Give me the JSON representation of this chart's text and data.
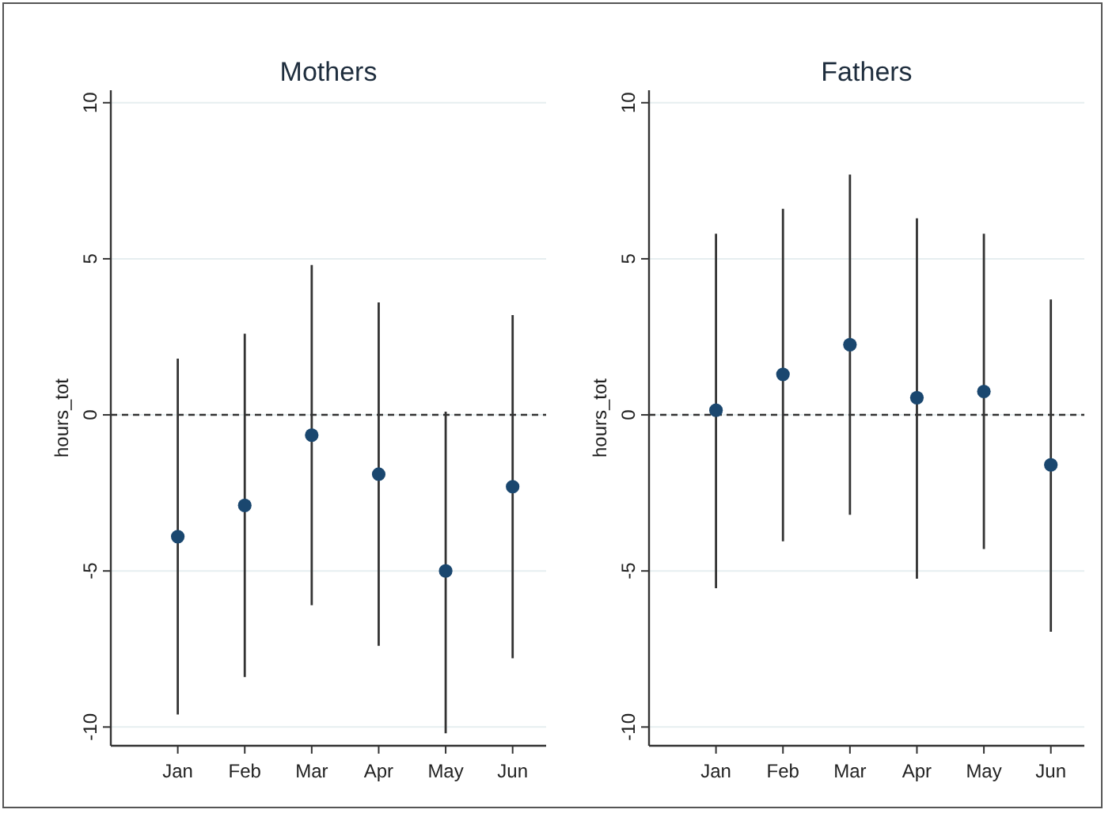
{
  "chart_data": [
    {
      "type": "scatter",
      "title": "Mothers",
      "ylabel": "hours_tot",
      "categories": [
        "Jan",
        "Feb",
        "Mar",
        "Apr",
        "May",
        "Jun"
      ],
      "series": [
        {
          "color": "#1a476f",
          "values": [
            -3.9,
            -2.9,
            -0.65,
            -1.9,
            -5.0,
            -2.3
          ],
          "errors": [
            [
              -9.6,
              1.8
            ],
            [
              -8.4,
              2.6
            ],
            [
              -6.1,
              4.8
            ],
            [
              -7.4,
              3.6
            ],
            [
              -10.2,
              0.1
            ],
            [
              -7.8,
              3.2
            ]
          ]
        }
      ],
      "ylim": [
        -10.6,
        10.4
      ],
      "yticks": [
        -10,
        -5,
        0,
        5,
        10
      ],
      "grid": "y",
      "marker": "circle",
      "ref_lines": [
        {
          "axis": "y",
          "value": 0,
          "line_style": "dashed",
          "color": "#333333"
        }
      ]
    },
    {
      "type": "scatter",
      "title": "Fathers",
      "ylabel": "hours_tot",
      "categories": [
        "Jan",
        "Feb",
        "Mar",
        "Apr",
        "May",
        "Jun"
      ],
      "series": [
        {
          "color": "#1a476f",
          "values": [
            0.15,
            1.3,
            2.25,
            0.55,
            0.75,
            -1.6
          ],
          "errors": [
            [
              -5.55,
              5.8
            ],
            [
              -4.05,
              6.6
            ],
            [
              -3.2,
              7.7
            ],
            [
              -5.25,
              6.3
            ],
            [
              -4.3,
              5.8
            ],
            [
              -6.95,
              3.7
            ]
          ]
        }
      ],
      "ylim": [
        -10.6,
        10.4
      ],
      "yticks": [
        -10,
        -5,
        0,
        5,
        10
      ],
      "grid": "y",
      "marker": "circle",
      "ref_lines": [
        {
          "axis": "y",
          "value": 0,
          "line_style": "dashed",
          "color": "#333333"
        }
      ]
    }
  ]
}
